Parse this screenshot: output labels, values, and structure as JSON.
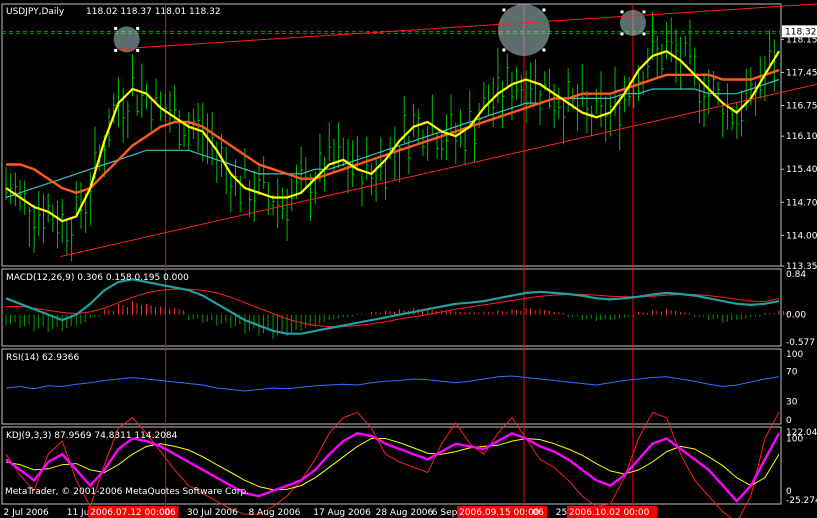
{
  "chart_data": {
    "type": "line",
    "symbol_label": "USDJPY,Daily",
    "ohlc_label": "118.02 118.37 118.01 118.32",
    "current_price": "118.32",
    "copyright": "MetaTrader, © 2001-2006 MetaQuotes Software Corp.",
    "colors": {
      "background": "#000000",
      "bars": "#00c000",
      "ma_fast": "#ffff00",
      "ma_slow": "#ff5a1e",
      "ma_mid": "#40c0c0",
      "trendline": "#ff2020",
      "vline": "#ff0000",
      "grid_dash": "#00a000",
      "macd_main": "#20a0a0",
      "macd_signal": "#ff2020",
      "macd_hist": "#00a000",
      "macd_hist_neg": "#ff3030",
      "rsi": "#3070ff",
      "kd_k": "#ff00ff",
      "kd_d": "#ffff00",
      "kd_j": "#ff2020",
      "panel_border": "#c0c0c0"
    },
    "main": {
      "ylim": [
        113.35,
        118.9
      ],
      "ticks": [
        118.15,
        117.45,
        116.75,
        116.1,
        115.4,
        114.7,
        114.0,
        113.35
      ],
      "tick_labels": [
        "118.15",
        "117.45",
        "116.75",
        "116.10",
        "115.40",
        "114.70",
        "114.00",
        "113.35"
      ],
      "seed": 7,
      "close_start": 114.8,
      "fast": [
        115.0,
        114.8,
        114.6,
        114.5,
        114.3,
        114.4,
        115.0,
        116.0,
        116.8,
        117.1,
        117.0,
        116.7,
        116.5,
        116.3,
        116.2,
        115.8,
        115.3,
        115.0,
        114.9,
        114.8,
        114.8,
        114.9,
        115.2,
        115.5,
        115.6,
        115.4,
        115.3,
        115.6,
        116.0,
        116.3,
        116.4,
        116.2,
        116.1,
        116.3,
        116.7,
        117.0,
        117.2,
        117.3,
        117.2,
        117.0,
        116.8,
        116.6,
        116.5,
        116.6,
        117.0,
        117.5,
        117.8,
        117.9,
        117.7,
        117.4,
        117.1,
        116.8,
        116.6,
        116.9,
        117.4,
        117.9
      ],
      "slow": [
        115.5,
        115.5,
        115.4,
        115.2,
        115.0,
        114.9,
        115.0,
        115.3,
        115.6,
        115.9,
        116.1,
        116.3,
        116.4,
        116.4,
        116.3,
        116.1,
        115.9,
        115.7,
        115.5,
        115.4,
        115.3,
        115.2,
        115.2,
        115.3,
        115.4,
        115.5,
        115.6,
        115.7,
        115.8,
        115.9,
        116.0,
        116.1,
        116.2,
        116.3,
        116.4,
        116.5,
        116.6,
        116.7,
        116.8,
        116.9,
        116.9,
        117.0,
        117.0,
        117.0,
        117.1,
        117.2,
        117.3,
        117.4,
        117.4,
        117.4,
        117.4,
        117.3,
        117.3,
        117.3,
        117.4,
        117.5
      ],
      "mid": [
        114.8,
        114.9,
        115.0,
        115.1,
        115.2,
        115.3,
        115.4,
        115.5,
        115.6,
        115.7,
        115.8,
        115.8,
        115.8,
        115.8,
        115.7,
        115.6,
        115.5,
        115.4,
        115.3,
        115.3,
        115.3,
        115.3,
        115.4,
        115.4,
        115.5,
        115.6,
        115.7,
        115.8,
        115.9,
        116.0,
        116.1,
        116.2,
        116.3,
        116.4,
        116.5,
        116.6,
        116.7,
        116.8,
        116.8,
        116.9,
        116.9,
        116.9,
        116.9,
        116.9,
        117.0,
        117.0,
        117.1,
        117.1,
        117.1,
        117.1,
        117.0,
        117.0,
        117.0,
        117.1,
        117.2,
        117.3
      ],
      "trendline_upper": [
        117.95,
        118.9
      ],
      "trendline_lower": [
        113.55,
        117.2
      ],
      "current_line": 118.32,
      "vlines_at": [
        0.21,
        0.67,
        0.81
      ],
      "highlight_circles": [
        {
          "at": 0.16,
          "price": 118.15
        },
        {
          "at": 0.67,
          "price": 118.35
        },
        {
          "at": 0.81,
          "price": 118.5
        }
      ]
    },
    "macd": {
      "label": "MACD(12,26,9) 0.306 0.158 0.195 0.000",
      "ylim": [
        -0.577,
        0.84
      ],
      "ticks": [
        0.84,
        0.0,
        -0.577
      ],
      "tick_labels": [
        "0.84",
        "0.00",
        "-0.577"
      ],
      "main": [
        0.3,
        0.2,
        0.1,
        0.0,
        -0.1,
        0.0,
        0.2,
        0.45,
        0.6,
        0.65,
        0.6,
        0.55,
        0.5,
        0.45,
        0.35,
        0.2,
        0.05,
        -0.1,
        -0.2,
        -0.3,
        -0.35,
        -0.35,
        -0.3,
        -0.25,
        -0.2,
        -0.15,
        -0.1,
        -0.05,
        0.0,
        0.05,
        0.1,
        0.15,
        0.2,
        0.22,
        0.25,
        0.3,
        0.35,
        0.4,
        0.42,
        0.4,
        0.38,
        0.35,
        0.3,
        0.28,
        0.3,
        0.33,
        0.37,
        0.4,
        0.38,
        0.35,
        0.3,
        0.25,
        0.2,
        0.18,
        0.2,
        0.25
      ],
      "signal": [
        0.15,
        0.15,
        0.12,
        0.08,
        0.04,
        0.02,
        0.05,
        0.12,
        0.22,
        0.32,
        0.4,
        0.45,
        0.47,
        0.47,
        0.45,
        0.4,
        0.32,
        0.22,
        0.12,
        0.02,
        -0.08,
        -0.15,
        -0.2,
        -0.22,
        -0.22,
        -0.2,
        -0.17,
        -0.13,
        -0.08,
        -0.04,
        0.0,
        0.05,
        0.1,
        0.14,
        0.18,
        0.22,
        0.26,
        0.3,
        0.34,
        0.36,
        0.37,
        0.37,
        0.36,
        0.34,
        0.33,
        0.33,
        0.34,
        0.36,
        0.37,
        0.37,
        0.35,
        0.32,
        0.28,
        0.25,
        0.24,
        0.3
      ],
      "hist": [
        -0.2,
        -0.25,
        -0.3,
        -0.32,
        -0.3,
        -0.2,
        -0.05,
        0.1,
        0.2,
        0.25,
        0.2,
        0.15,
        0.12,
        -0.1,
        -0.15,
        -0.2,
        -0.25,
        -0.35,
        -0.4,
        -0.45,
        -0.4,
        -0.3,
        -0.2,
        -0.1,
        -0.05,
        0.02,
        0.05,
        0.08,
        0.1,
        0.12,
        0.1,
        0.08,
        0.06,
        0.05,
        0.06,
        0.08,
        0.1,
        0.12,
        0.1,
        0.05,
        -0.05,
        -0.1,
        -0.12,
        -0.1,
        -0.05,
        0.05,
        0.08,
        0.1,
        0.05,
        -0.05,
        -0.1,
        -0.15,
        -0.1,
        -0.05,
        0.03,
        0.08
      ]
    },
    "rsi": {
      "label": "RSI(14) 62.9366",
      "ylim": [
        0,
        100
      ],
      "ticks": [
        100,
        70,
        30,
        0
      ],
      "tick_labels": [
        "100",
        "70",
        "30",
        "0"
      ],
      "values": [
        48,
        50,
        47,
        51,
        50,
        53,
        55,
        58,
        60,
        62,
        60,
        58,
        56,
        54,
        52,
        48,
        46,
        44,
        46,
        48,
        47,
        49,
        51,
        52,
        53,
        52,
        55,
        57,
        58,
        60,
        59,
        57,
        55,
        57,
        60,
        63,
        64,
        62,
        60,
        58,
        56,
        54,
        52,
        55,
        58,
        60,
        62,
        63,
        60,
        57,
        53,
        50,
        52,
        56,
        60,
        63
      ]
    },
    "kd": {
      "label": "KDJ(9,3,3) 87.9569 74.8311 114.2084",
      "ylim": [
        -25.2741,
        122.0461
      ],
      "ticks": [
        122.0461,
        100,
        0,
        -25.2741
      ],
      "tick_labels": [
        "122.046",
        "100",
        "0",
        "-25.274"
      ],
      "k": [
        60,
        40,
        20,
        55,
        70,
        40,
        10,
        40,
        80,
        100,
        95,
        85,
        70,
        55,
        40,
        25,
        10,
        -5,
        -10,
        0,
        10,
        20,
        40,
        70,
        95,
        110,
        105,
        90,
        80,
        70,
        60,
        75,
        90,
        85,
        80,
        95,
        110,
        100,
        85,
        75,
        60,
        40,
        20,
        10,
        30,
        60,
        90,
        100,
        80,
        60,
        40,
        10,
        -20,
        10,
        60,
        110
      ],
      "d": [
        55,
        50,
        40,
        42,
        50,
        52,
        40,
        35,
        50,
        70,
        85,
        90,
        85,
        78,
        65,
        50,
        35,
        20,
        8,
        2,
        3,
        10,
        25,
        45,
        65,
        85,
        100,
        100,
        92,
        82,
        72,
        70,
        75,
        82,
        85,
        87,
        95,
        100,
        98,
        90,
        80,
        68,
        52,
        38,
        32,
        40,
        55,
        75,
        85,
        80,
        65,
        48,
        25,
        10,
        25,
        70
      ],
      "j": [
        70,
        30,
        0,
        70,
        95,
        20,
        -30,
        50,
        120,
        140,
        110,
        75,
        40,
        10,
        -5,
        -20,
        -35,
        -45,
        -45,
        -30,
        -10,
        20,
        60,
        110,
        140,
        150,
        120,
        70,
        55,
        45,
        35,
        90,
        130,
        90,
        70,
        110,
        140,
        100,
        60,
        45,
        20,
        -10,
        -30,
        -25,
        25,
        100,
        150,
        140,
        70,
        20,
        -10,
        -40,
        -60,
        -10,
        100,
        150
      ]
    },
    "x_labels": [
      "2 Jul 2006",
      "11 Jul",
      "2006.07.12 00:00",
      "06",
      "30 Jul 2006",
      "8 Aug 2006",
      "17 Aug 2006",
      "28 Aug 2006",
      "6 Sep",
      "2006.09.15 00:00",
      "06",
      "25",
      "2006.10.02 00:00"
    ],
    "x_label_at": [
      0.002,
      0.083,
      0.113,
      0.208,
      0.237,
      0.316,
      0.399,
      0.479,
      0.551,
      0.586,
      0.68,
      0.71,
      0.727
    ],
    "x_label_highlight": [
      false,
      false,
      true,
      false,
      false,
      false,
      false,
      false,
      false,
      true,
      false,
      false,
      true
    ]
  }
}
